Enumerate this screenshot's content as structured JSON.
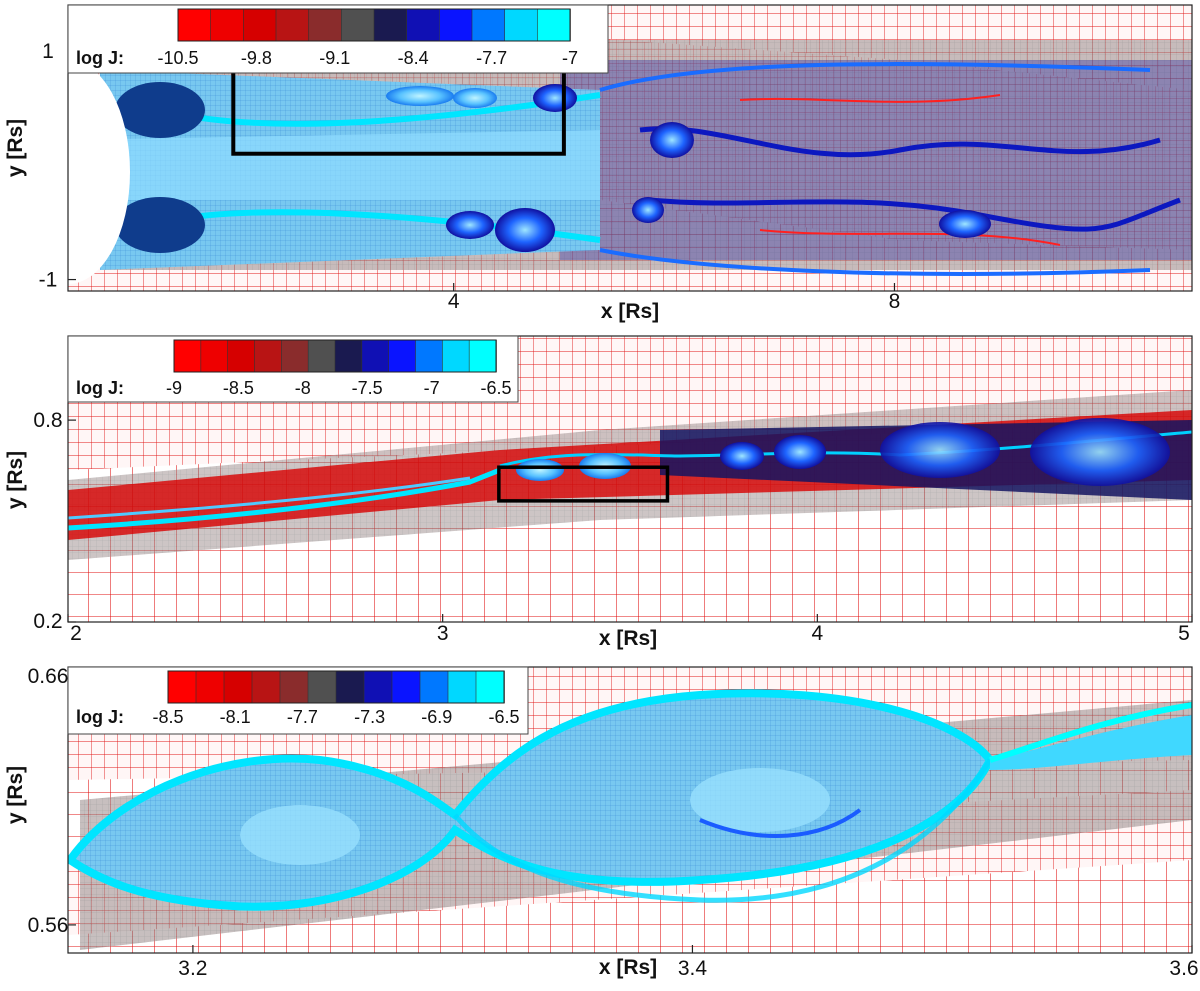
{
  "colormap": [
    "#ff0000",
    "#ee0000",
    "#d60000",
    "#b81414",
    "#8a2c2c",
    "#505050",
    "#1a1a50",
    "#1010b4",
    "#0a14ff",
    "#0078ff",
    "#00d8ff",
    "#00ffff"
  ],
  "chart_data": [
    {
      "type": "heatmap",
      "title": "",
      "xlabel": "x [Rs]",
      "ylabel": "y [Rs]",
      "xlim": [
        0.5,
        10.7
      ],
      "ylim": [
        -1.1,
        1.4
      ],
      "xticks": [
        4,
        8
      ],
      "yticks": [
        -1,
        1
      ],
      "grid": false,
      "legend_position": "top-left",
      "colorbar": {
        "label": "log J:",
        "tick_labels": [
          "-10.5",
          "-9.8",
          "-9.1",
          "-8.4",
          "-7.7",
          "-7"
        ],
        "min": -10.5,
        "max": -7
      },
      "annotations": [
        {
          "type": "box",
          "x": [
            2.0,
            5.0
          ],
          "y": [
            0.1,
            0.95
          ]
        }
      ]
    },
    {
      "type": "heatmap",
      "title": "",
      "xlabel": "x [Rs]",
      "ylabel": "y [Rs]",
      "xlim": [
        2,
        5
      ],
      "ylim": [
        0.2,
        1.05
      ],
      "xticks": [
        2,
        3,
        4,
        5
      ],
      "yticks": [
        0.2,
        0.8
      ],
      "grid": false,
      "legend_position": "top-left",
      "colorbar": {
        "label": "log J:",
        "tick_labels": [
          "-9",
          "-8.5",
          "-8",
          "-7.5",
          "-7",
          "-6.5"
        ],
        "min": -9,
        "max": -6.5
      },
      "annotations": [
        {
          "type": "box",
          "x": [
            3.15,
            3.6
          ],
          "y": [
            0.56,
            0.66
          ]
        }
      ]
    },
    {
      "type": "heatmap",
      "title": "",
      "xlabel": "x [Rs]",
      "ylabel": "y [Rs]",
      "xlim": [
        3.15,
        3.6
      ],
      "ylim": [
        0.549,
        0.661
      ],
      "xticks": [
        3.2,
        3.4,
        3.6
      ],
      "yticks": [
        0.56,
        0.66
      ],
      "grid": false,
      "legend_position": "top-left",
      "colorbar": {
        "label": "log J:",
        "tick_labels": [
          "-8.5",
          "-8.1",
          "-7.7",
          "-7.3",
          "-6.9",
          "-6.5"
        ],
        "min": -8.5,
        "max": -6.5
      },
      "annotations": []
    }
  ]
}
